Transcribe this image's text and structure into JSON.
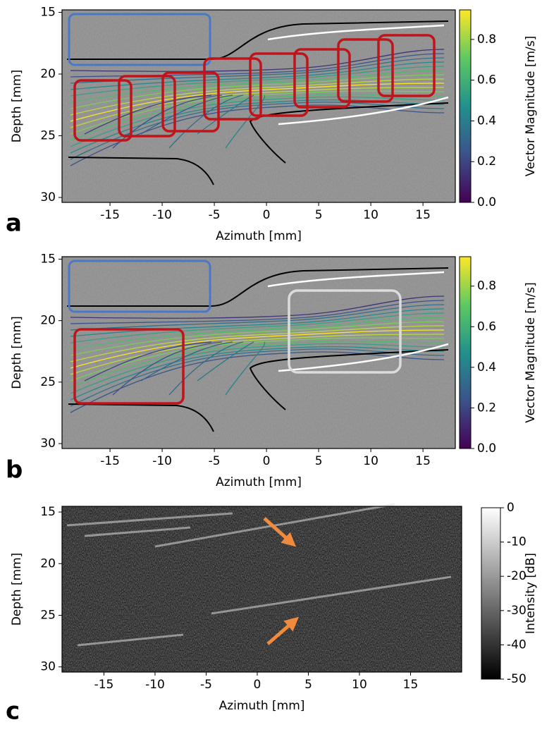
{
  "chart_data": [
    {
      "type": "image",
      "panel_label": "a",
      "xlabel": "Azimuth [mm]",
      "ylabel": "Depth [mm]",
      "xlim": [
        -19.6,
        18.1
      ],
      "xticks": [
        -15,
        -10,
        -5,
        0,
        5,
        10,
        15
      ],
      "ylim": [
        30.4,
        14.8
      ],
      "yticks": [
        15,
        20,
        25,
        30
      ],
      "colorbar_label": "Vector Magnitude [m/s]",
      "colormap": "viridis",
      "clim": [
        0,
        0.945
      ],
      "cticks": [
        {
          "value": 0,
          "label": "0.0"
        },
        0.2,
        0.4,
        0.6,
        0.8
      ]
    },
    {
      "type": "image",
      "panel_label": "b",
      "xlabel": "Azimuth [mm]",
      "ylabel": "Depth [mm]",
      "xlim": [
        -19.6,
        18.1
      ],
      "xticks": [
        -15,
        -10,
        -5,
        0,
        5,
        10,
        15
      ],
      "ylim": [
        30.4,
        14.8
      ],
      "yticks": [
        15,
        20,
        25,
        30
      ],
      "colorbar_label": "Vector Magnitude [m/s]",
      "colormap": "viridis",
      "clim": [
        0,
        0.945
      ],
      "cticks": [
        {
          "value": 0,
          "label": "0.0"
        },
        0.2,
        0.4,
        0.6,
        0.8
      ]
    },
    {
      "type": "image",
      "panel_label": "c",
      "xlabel": "Azimuth [mm]",
      "ylabel": "Depth [mm]",
      "xlim": [
        -19.1,
        20.0
      ],
      "xticks": [
        -15,
        -10,
        -5,
        0,
        5,
        10,
        15
      ],
      "ylim": [
        30.5,
        14.45
      ],
      "yticks": [
        15,
        20,
        25,
        30
      ],
      "colorbar_label": "Intensity [dB]",
      "colormap": "gray",
      "clim": [
        -50,
        0
      ],
      "cticks": [
        0,
        -10,
        -20,
        -30,
        -40,
        -50
      ]
    }
  ]
}
